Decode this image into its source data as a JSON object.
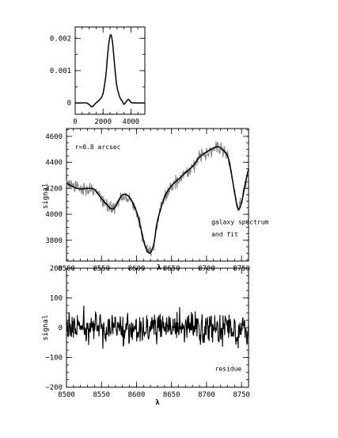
{
  "chart_data": [
    {
      "id": "kernel",
      "type": "line",
      "xlim": [
        0,
        5000
      ],
      "ylim": [
        -0.00035,
        0.00235
      ],
      "x_ticks": [
        0,
        2000,
        4000
      ],
      "x_tick_labels": [
        "0",
        "2000",
        "4000"
      ],
      "y_ticks": [
        0,
        0.001,
        0.002
      ],
      "y_tick_labels": [
        "0",
        "0.001",
        "0.002"
      ],
      "x_minor": 500,
      "y_minor": 0.0005,
      "xlabel": "",
      "ylabel": "",
      "annotations": [],
      "series": [
        {
          "style": "line",
          "color": "#000000",
          "x": [
            0,
            400,
            800,
            1000,
            1200,
            1400,
            1600,
            1800,
            2000,
            2200,
            2300,
            2400,
            2500,
            2550,
            2600,
            2700,
            2800,
            2900,
            3000,
            3200,
            3400,
            3500,
            3700,
            3800,
            3900,
            4000,
            4200,
            5000
          ],
          "y": [
            0,
            0,
            0,
            -5e-05,
            -0.00012,
            -4e-05,
            4e-05,
            0.00012,
            0.0003,
            0.00085,
            0.00135,
            0.0018,
            0.00207,
            0.0021,
            0.00207,
            0.0018,
            0.0013,
            0.00085,
            0.0005,
            0.00018,
            4e-05,
            -4e-05,
            6e-05,
            0.00011,
            8e-05,
            2e-05,
            0,
            0
          ]
        }
      ]
    },
    {
      "id": "spectrum",
      "type": "line",
      "xlim": [
        8500,
        8760
      ],
      "ylim": [
        3640,
        4660
      ],
      "x_ticks": [
        8500,
        8550,
        8600,
        8650,
        8700,
        8750
      ],
      "x_tick_labels": [
        "8500",
        "8550",
        "8600",
        "8650",
        "8700",
        "8750"
      ],
      "y_ticks": [
        3800,
        4000,
        4200,
        4400,
        4600
      ],
      "y_tick_labels": [
        "3800",
        "4000",
        "4200",
        "4400",
        "4600"
      ],
      "x_minor": 10,
      "y_minor": 50,
      "xlabel": "λ",
      "ylabel": "signal",
      "annotations": [
        {
          "text": "r=0.8 arcsec",
          "x": 8512,
          "y": 4500
        },
        {
          "text": "galaxy spectrum",
          "x": 8707,
          "y": 3925
        },
        {
          "text": "and fit",
          "x": 8707,
          "y": 3830
        }
      ],
      "series": [
        {
          "style": "noisy",
          "color": "#888888",
          "noise_amplitude": 45,
          "x": [
            8500,
            8510,
            8520,
            8530,
            8540,
            8550,
            8560,
            8565,
            8570,
            8580,
            8590,
            8600,
            8605,
            8610,
            8615,
            8620,
            8625,
            8630,
            8640,
            8650,
            8660,
            8670,
            8680,
            8690,
            8700,
            8710,
            8715,
            8720,
            8730,
            8735,
            8740,
            8745,
            8750,
            8755,
            8760
          ],
          "y": [
            4240,
            4210,
            4195,
            4200,
            4190,
            4120,
            4060,
            4040,
            4060,
            4150,
            4130,
            4020,
            3920,
            3800,
            3720,
            3705,
            3780,
            3950,
            4130,
            4220,
            4270,
            4320,
            4370,
            4440,
            4480,
            4510,
            4520,
            4510,
            4450,
            4330,
            4170,
            4040,
            4090,
            4230,
            4350
          ]
        },
        {
          "style": "line",
          "color": "#000000",
          "x": [
            8500,
            8510,
            8520,
            8530,
            8540,
            8550,
            8560,
            8565,
            8570,
            8580,
            8590,
            8600,
            8605,
            8610,
            8615,
            8620,
            8625,
            8630,
            8640,
            8650,
            8660,
            8670,
            8680,
            8690,
            8700,
            8710,
            8715,
            8720,
            8730,
            8735,
            8740,
            8745,
            8750,
            8755,
            8760
          ],
          "y": [
            4240,
            4210,
            4195,
            4200,
            4190,
            4120,
            4060,
            4040,
            4060,
            4150,
            4130,
            4020,
            3920,
            3800,
            3720,
            3705,
            3780,
            3950,
            4130,
            4220,
            4270,
            4320,
            4370,
            4440,
            4480,
            4510,
            4520,
            4510,
            4450,
            4330,
            4170,
            4040,
            4090,
            4230,
            4350
          ]
        }
      ]
    },
    {
      "id": "residue",
      "type": "line",
      "xlim": [
        8500,
        8760
      ],
      "ylim": [
        -200,
        200
      ],
      "x_ticks": [
        8500,
        8550,
        8600,
        8650,
        8700,
        8750
      ],
      "x_tick_labels": [
        "8500",
        "8550",
        "8600",
        "8650",
        "8700",
        "8750"
      ],
      "y_ticks": [
        -200,
        -100,
        0,
        100,
        200
      ],
      "y_tick_labels": [
        "−200",
        "−100",
        "0",
        "100",
        "200"
      ],
      "x_minor": 10,
      "y_minor": 25,
      "xlabel": "λ",
      "ylabel": "signal",
      "annotations": [
        {
          "text": "residue",
          "x": 8712,
          "y": -145
        }
      ],
      "series": [
        {
          "style": "noisy",
          "color": "#000000",
          "noise_amplitude": 45,
          "x": [
            8500,
            8760
          ],
          "y": [
            0,
            0
          ]
        }
      ]
    }
  ]
}
